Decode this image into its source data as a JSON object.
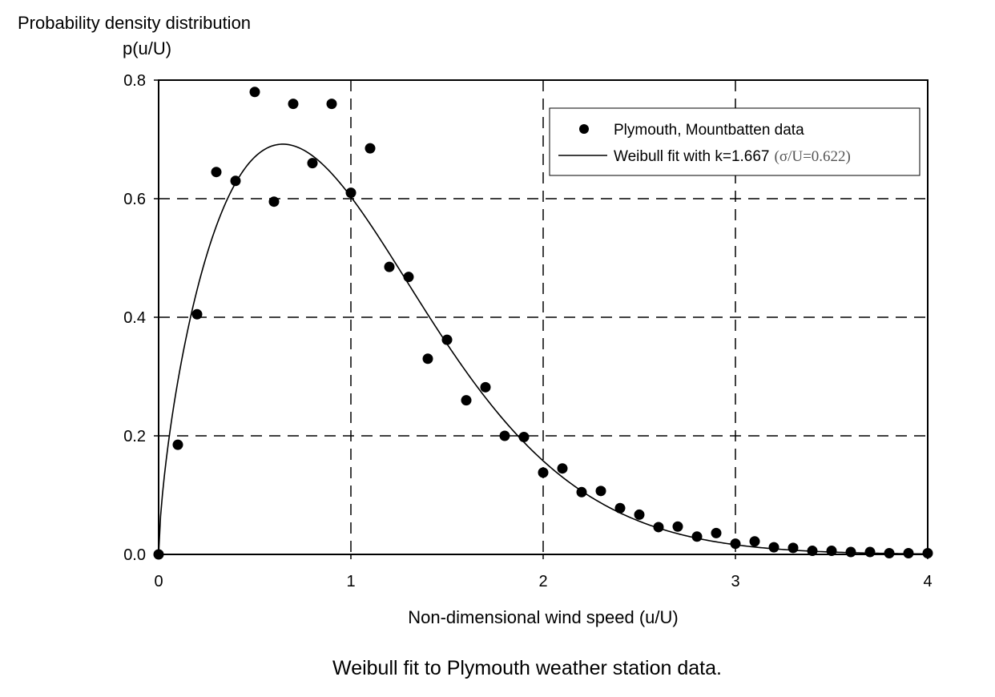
{
  "chart_data": {
    "type": "scatter",
    "caption": "Weibull fit to Plymouth weather station data.",
    "ylabel": [
      "Probability density distribution",
      "p(u/U)"
    ],
    "xlabel": "Non-dimensional wind speed (u/U)",
    "xlim": [
      0,
      4
    ],
    "ylim": [
      0,
      0.8
    ],
    "xticks": [
      "0",
      "1",
      "2",
      "3",
      "4"
    ],
    "yticks": [
      "0.0",
      "0.2",
      "0.4",
      "0.6",
      "0.8"
    ],
    "grid": "dashed major gridlines",
    "legend": {
      "position": "top-right",
      "points_label": "Plymouth, Mountbatten data",
      "line_label": "Weibull fit with k=1.667",
      "line_label_extra": "(σ/U=0.622)"
    },
    "series": [
      {
        "name": "Plymouth, Mountbatten data",
        "kind": "points",
        "x": [
          0.0,
          0.1,
          0.2,
          0.3,
          0.4,
          0.5,
          0.6,
          0.7,
          0.8,
          0.9,
          1.0,
          1.1,
          1.2,
          1.3,
          1.4,
          1.5,
          1.6,
          1.7,
          1.8,
          1.9,
          2.0,
          2.1,
          2.2,
          2.3,
          2.4,
          2.5,
          2.6,
          2.7,
          2.8,
          2.9,
          3.0,
          3.1,
          3.2,
          3.3,
          3.4,
          3.5,
          3.6,
          3.7,
          3.8,
          3.9,
          4.0
        ],
        "y": [
          0.0,
          0.185,
          0.405,
          0.645,
          0.63,
          0.78,
          0.595,
          0.76,
          0.66,
          0.76,
          0.61,
          0.685,
          0.485,
          0.468,
          0.33,
          0.362,
          0.26,
          0.282,
          0.2,
          0.198,
          0.138,
          0.145,
          0.105,
          0.107,
          0.078,
          0.067,
          0.046,
          0.047,
          0.03,
          0.036,
          0.018,
          0.022,
          0.012,
          0.011,
          0.006,
          0.006,
          0.004,
          0.004,
          0.002,
          0.002,
          0.002
        ]
      },
      {
        "name": "Weibull fit with k=1.667",
        "kind": "line",
        "k": 1.667
      }
    ]
  }
}
